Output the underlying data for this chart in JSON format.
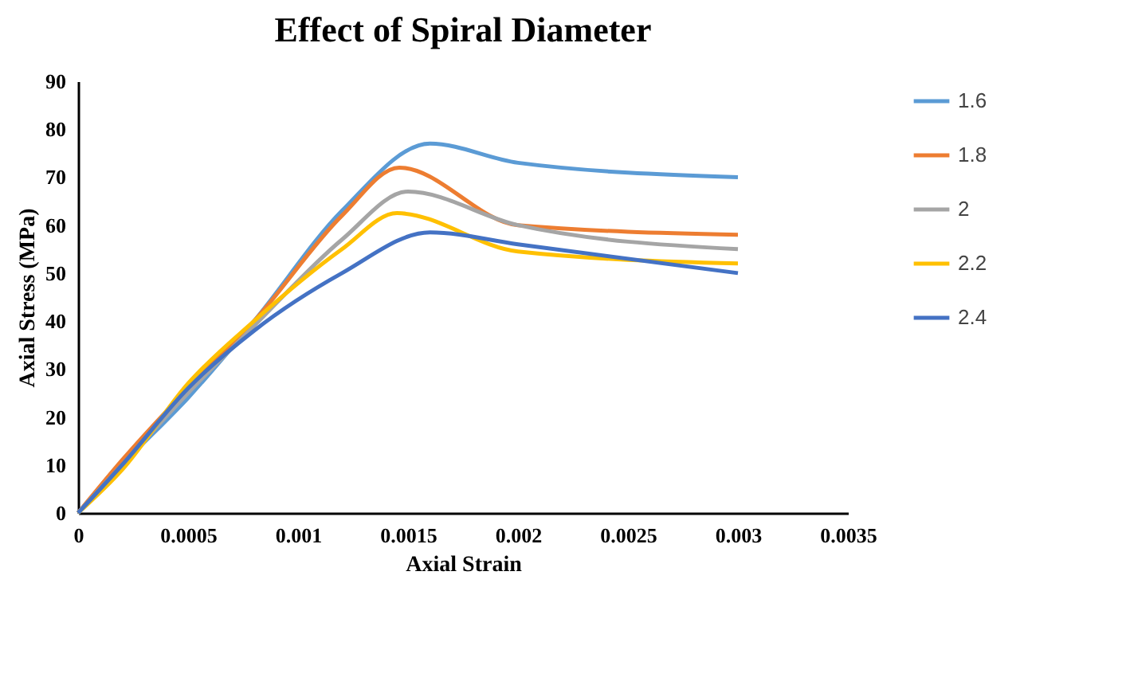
{
  "chart_data": {
    "type": "line",
    "title": "Effect of Spiral Diameter",
    "xlabel": "Axial Strain",
    "ylabel": "Axial Stress (MPa)",
    "xlim": [
      0,
      0.0035
    ],
    "xticks": [
      0,
      0.0005,
      0.001,
      0.0015,
      0.002,
      0.0025,
      0.003,
      0.0035
    ],
    "ylim": [
      0,
      90
    ],
    "yticks": [
      0,
      10,
      20,
      30,
      40,
      50,
      60,
      70,
      80,
      90
    ],
    "grid": false,
    "legend": "right",
    "marker": "none",
    "line_style": "solid",
    "series": [
      {
        "name": "1.6",
        "color": "#5b9bd5",
        "x": [
          0,
          0.0002,
          0.0005,
          0.0008,
          0.0012,
          0.0016,
          0.002,
          0.003
        ],
        "values": [
          0,
          10,
          24,
          40,
          63,
          77,
          73,
          70
        ]
      },
      {
        "name": "1.8",
        "color": "#ed7d31",
        "x": [
          0,
          0.0002,
          0.0005,
          0.0008,
          0.0012,
          0.00146,
          0.002,
          0.003
        ],
        "values": [
          0,
          11,
          26,
          40,
          62,
          72,
          60,
          58
        ]
      },
      {
        "name": "2",
        "color": "#a5a5a5",
        "x": [
          0,
          0.0002,
          0.0005,
          0.0008,
          0.0012,
          0.0015,
          0.002,
          0.003
        ],
        "values": [
          0,
          10,
          25,
          39,
          57,
          67,
          60,
          55
        ]
      },
      {
        "name": "2.2",
        "color": "#ffc000",
        "x": [
          0,
          0.0002,
          0.0005,
          0.0008,
          0.0012,
          0.00145,
          0.002,
          0.003
        ],
        "values": [
          0,
          9,
          27,
          40,
          55,
          62.5,
          54.5,
          52
        ]
      },
      {
        "name": "2.4",
        "color": "#4472c4",
        "x": [
          0,
          0.0002,
          0.0005,
          0.0008,
          0.0012,
          0.0016,
          0.002,
          0.003
        ],
        "values": [
          0,
          10,
          26,
          38,
          50,
          58.5,
          56,
          50
        ]
      }
    ]
  }
}
